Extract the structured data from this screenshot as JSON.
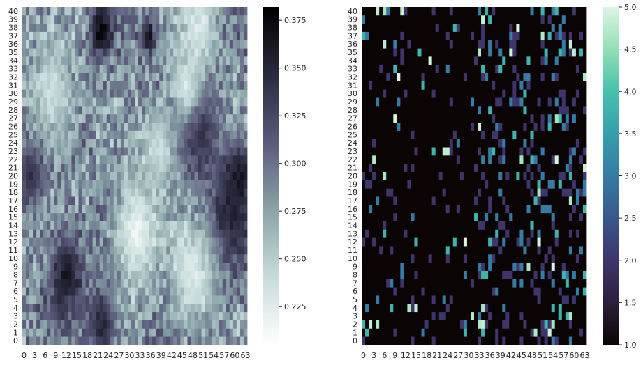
{
  "chart_data": [
    {
      "type": "heatmap",
      "title": "",
      "xlabel": "",
      "ylabel": "",
      "n_cols": 64,
      "n_rows": 41,
      "x_tick_labels": [
        "0",
        "3",
        "6",
        "9",
        "12",
        "15",
        "18",
        "21",
        "24",
        "27",
        "30",
        "33",
        "36",
        "39",
        "42",
        "45",
        "48",
        "51",
        "54",
        "57",
        "60",
        "63"
      ],
      "y_tick_labels": [
        "0",
        "1",
        "2",
        "3",
        "4",
        "5",
        "6",
        "7",
        "8",
        "9",
        "10",
        "11",
        "12",
        "13",
        "14",
        "15",
        "16",
        "17",
        "18",
        "19",
        "20",
        "21",
        "22",
        "23",
        "24",
        "25",
        "26",
        "27",
        "28",
        "29",
        "30",
        "31",
        "32",
        "33",
        "34",
        "35",
        "36",
        "37",
        "38",
        "39",
        "40"
      ],
      "colormap": "bone_r",
      "colormap_stops": [
        "#ffffff",
        "#c8dcdb",
        "#8aa3a8",
        "#5a5a7a",
        "#2a2a3e",
        "#000000"
      ],
      "vmin": 0.205,
      "vmax": 0.382,
      "colorbar_ticks": [
        "0.225",
        "0.250",
        "0.275",
        "0.300",
        "0.325",
        "0.350",
        "0.375"
      ],
      "colorbar_values": [
        0.225,
        0.25,
        0.275,
        0.3,
        0.325,
        0.35,
        0.375
      ],
      "grid": false,
      "legend": "colorbar-right",
      "hotspots": [
        {
          "x": 22,
          "y": 37.5,
          "r": 3,
          "v": 0.38
        },
        {
          "x": 35.5,
          "y": 37,
          "r": 2,
          "v": 0.37
        },
        {
          "x": 12,
          "y": 8,
          "r": 5,
          "v": 0.36
        },
        {
          "x": 22,
          "y": 2,
          "r": 4,
          "v": 0.35
        },
        {
          "x": 59,
          "y": 15,
          "r": 6,
          "v": 0.35
        },
        {
          "x": 61,
          "y": 20,
          "r": 4,
          "v": 0.36
        },
        {
          "x": 50,
          "y": 25,
          "r": 6,
          "v": 0.34
        },
        {
          "x": 2,
          "y": 20,
          "r": 4,
          "v": 0.34
        },
        {
          "x": 46,
          "y": 31,
          "r": 4,
          "v": 0.23
        },
        {
          "x": 50,
          "y": 38,
          "r": 5,
          "v": 0.23
        },
        {
          "x": 32,
          "y": 13,
          "r": 6,
          "v": 0.22
        },
        {
          "x": 48,
          "y": 8,
          "r": 6,
          "v": 0.23
        },
        {
          "x": 8,
          "y": 30,
          "r": 6,
          "v": 0.24
        },
        {
          "x": 38,
          "y": 23,
          "r": 5,
          "v": 0.24
        }
      ],
      "base_value": 0.285,
      "noise": 0.032,
      "seed": 7
    },
    {
      "type": "heatmap",
      "title": "",
      "xlabel": "",
      "ylabel": "",
      "n_cols": 64,
      "n_rows": 41,
      "x_tick_labels": [
        "0",
        "3",
        "6",
        "9",
        "12",
        "15",
        "18",
        "21",
        "24",
        "27",
        "30",
        "33",
        "36",
        "39",
        "42",
        "45",
        "48",
        "51",
        "54",
        "57",
        "60",
        "63"
      ],
      "y_tick_labels": [
        "0",
        "1",
        "2",
        "3",
        "4",
        "5",
        "6",
        "7",
        "8",
        "9",
        "10",
        "11",
        "12",
        "13",
        "14",
        "15",
        "16",
        "17",
        "18",
        "19",
        "20",
        "21",
        "22",
        "23",
        "24",
        "25",
        "26",
        "27",
        "28",
        "29",
        "30",
        "31",
        "32",
        "33",
        "34",
        "35",
        "36",
        "37",
        "38",
        "39",
        "40"
      ],
      "colormap": "mako",
      "colormap_stops": [
        "#0b0405",
        "#2e1e3c",
        "#3e356b",
        "#38588c",
        "#357ba3",
        "#359fac",
        "#48c1ad",
        "#93dfb5",
        "#def5e5"
      ],
      "vmin": 1.0,
      "vmax": 5.0,
      "colorbar_ticks": [
        "1.0",
        "1.5",
        "2.0",
        "2.5",
        "3.0",
        "3.5",
        "4.0",
        "4.5",
        "5.0"
      ],
      "colorbar_values": [
        1.0,
        1.5,
        2.0,
        2.5,
        3.0,
        3.5,
        4.0,
        4.5,
        5.0
      ],
      "grid": false,
      "legend": "colorbar-right",
      "sparsity": 0.25,
      "dense_region_x": [
        33,
        63
      ],
      "seed": 19
    }
  ]
}
